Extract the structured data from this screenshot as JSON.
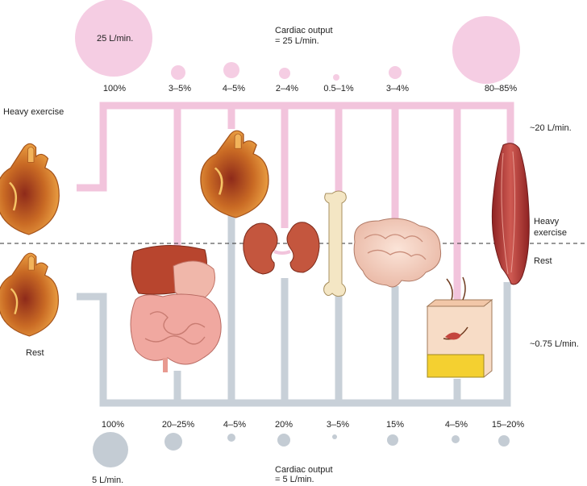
{
  "heavy": {
    "side_label": "Heavy exercise",
    "total_label": "25 L/min.",
    "output_label_line1": "Cardiac output",
    "output_label_line2": "= 25 L/min.",
    "percentages": [
      "100%",
      "3–5%",
      "4–5%",
      "2–4%",
      "0.5–1%",
      "3–4%",
      "80–85%"
    ],
    "muscle_flow": "~20 L/min."
  },
  "rest": {
    "side_label": "Rest",
    "total_label": "5 L/min.",
    "output_label_line1": "Cardiac output",
    "output_label_line2": "= 5 L/min.",
    "percentages": [
      "100%",
      "20–25%",
      "4–5%",
      "20%",
      "3–5%",
      "15%",
      "4–5%",
      "15–20%"
    ],
    "muscle_flow": "~0.75 L/min."
  },
  "divider": {
    "upper_label_line1": "Heavy",
    "upper_label_line2": "exercise",
    "lower_label": "Rest"
  },
  "organs": [
    "heart",
    "digestive-tract",
    "heart-muscle",
    "kidneys",
    "bone",
    "brain",
    "skin",
    "skeletal-muscle"
  ],
  "colors": {
    "exercise_flow": "#f2c4dc",
    "exercise_circle": "#f5cde3",
    "rest_flow": "#c8d0d8",
    "rest_circle": "#c4ccd4",
    "heart": "#d9822b",
    "muscle": "#b83a3a",
    "kidney": "#c4563e",
    "liver": "#b8452e",
    "intestine": "#f0a8a0",
    "brain": "#f6d4c4",
    "bone": "#f4e6c4",
    "skin_fat": "#f4d030"
  }
}
